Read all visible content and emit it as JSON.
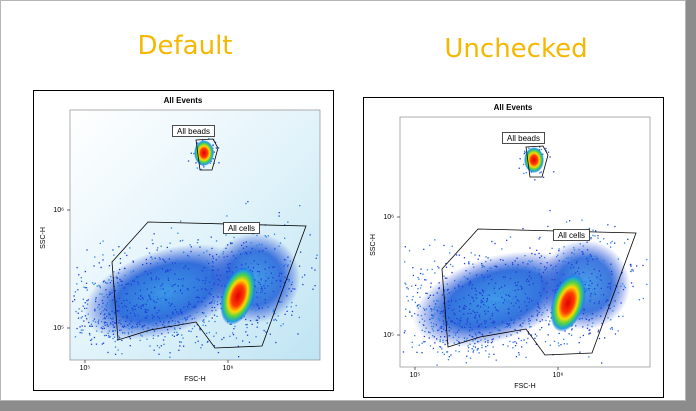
{
  "panels": [
    {
      "heading": "Default",
      "plot": {
        "title": "All Events",
        "x_label": "FSC-H",
        "y_label": "SSC-H",
        "x_ticks": [
          "10⁵",
          "10⁶"
        ],
        "y_ticks": [
          "10⁶",
          "10⁵"
        ],
        "gates": [
          "All beads",
          "All cells"
        ]
      }
    },
    {
      "heading": "Unchecked",
      "plot": {
        "title": "All Events",
        "x_label": "FSC-H",
        "y_label": "SSC-H",
        "x_ticks": [
          "10⁵",
          "10⁶"
        ],
        "y_ticks": [
          "10⁶",
          "10⁵"
        ],
        "gates": [
          "All beads",
          "All cells"
        ]
      }
    }
  ]
}
